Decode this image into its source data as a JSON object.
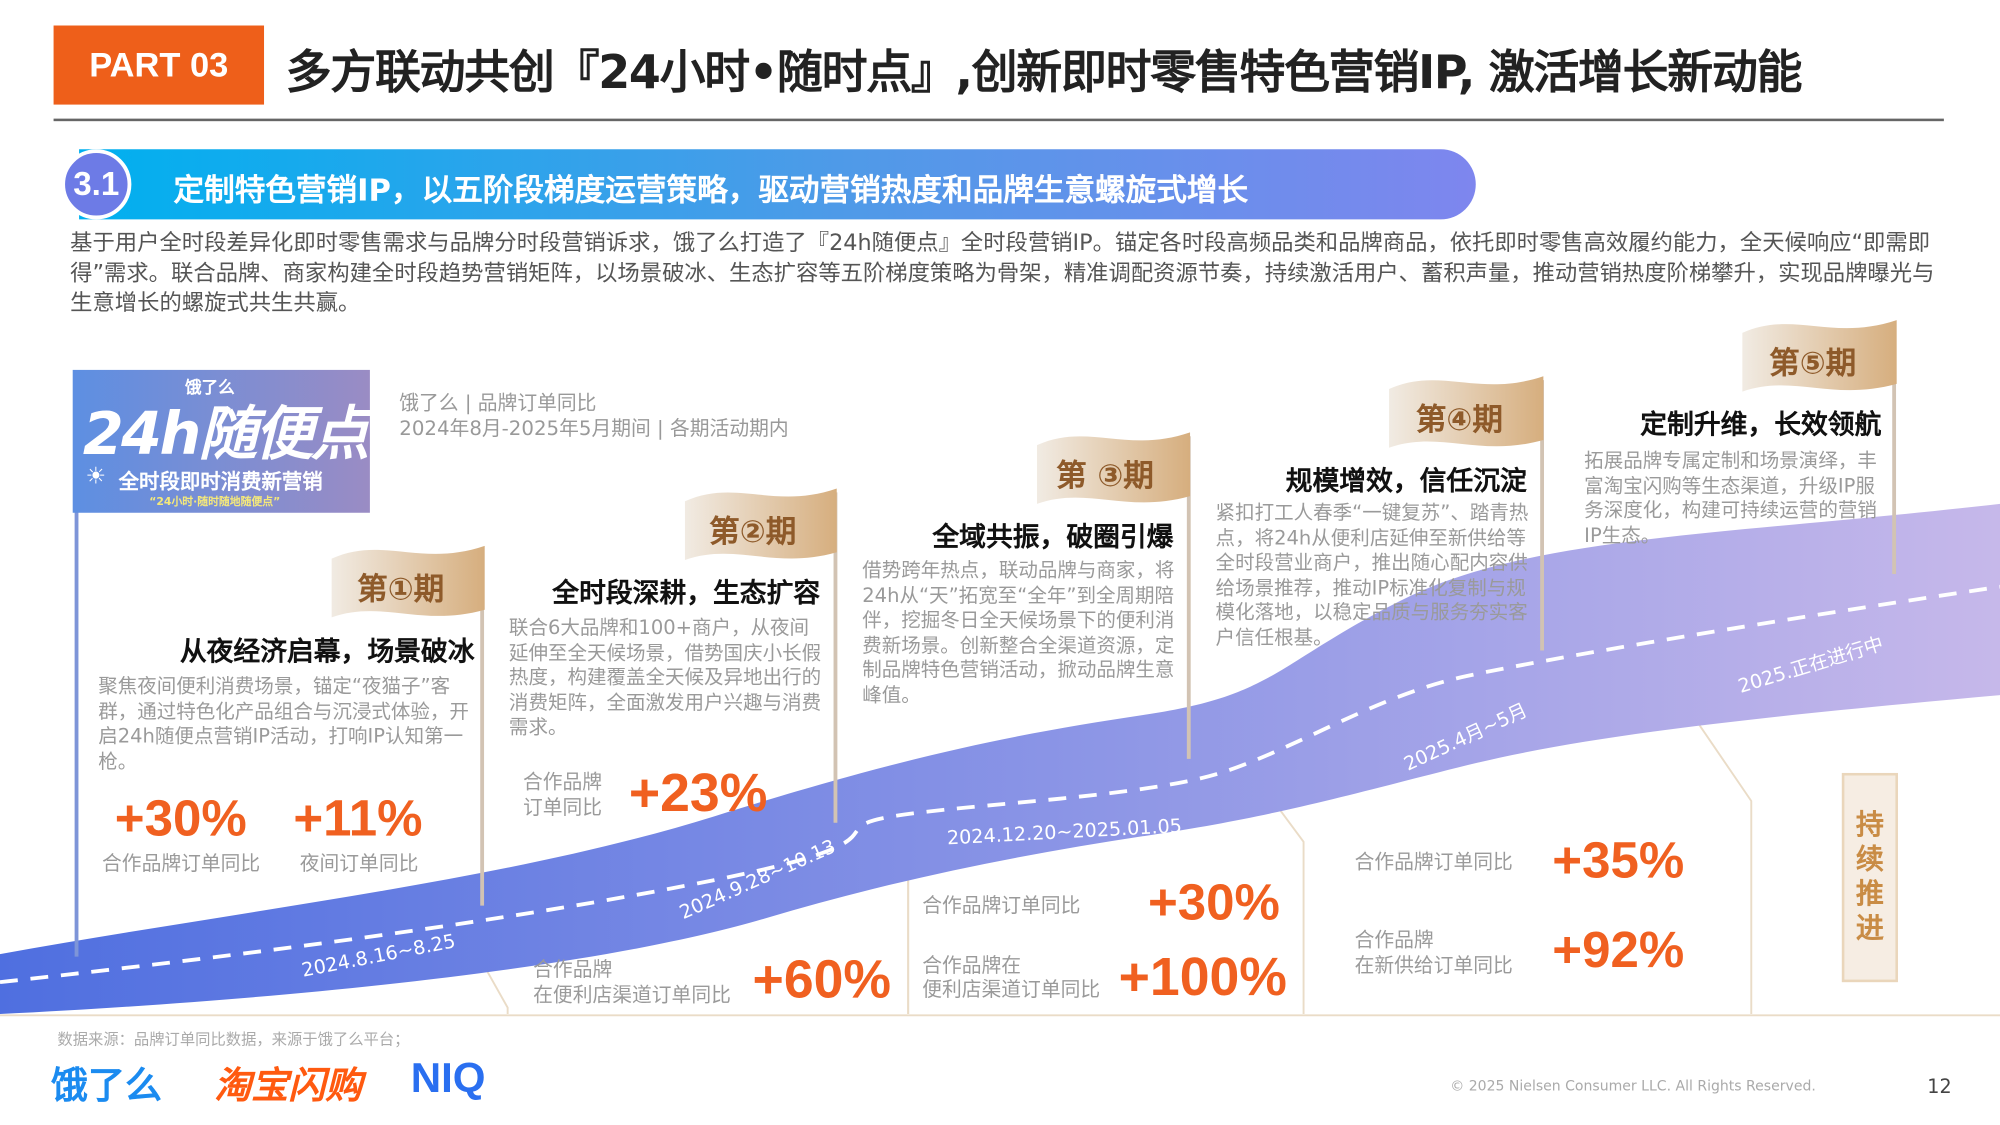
{
  "header": {
    "part_label": "PART 03",
    "title": "多方联动共创『24小时•随时点』,创新即时零售特色营销IP, 激活增长新动能"
  },
  "section": {
    "number": "3.1",
    "title": "定制特色营销IP，以五阶段梯度运营策略，驱动营销热度和品牌生意螺旋式增长"
  },
  "intro": "基于用户全时段差异化即时零售需求与品牌分时段营销诉求，饿了么打造了『24h随便点』全时段营销IP。锚定各时段高频品类和品牌商品，依托即时零售高效履约能力，全天候响应“即需即得”需求。联合品牌、商家构建全时段趋势营销矩阵，以场景破冰、生态扩容等五阶梯度策略为骨架，精准调配资源节奏，持续激活用户、蓄积声量，推动营销热度阶梯攀升，实现品牌曝光与生意增长的螺旋式共生共赢。",
  "logo": {
    "brand": "饿了么",
    "name": "24h随便点",
    "subtitle": "全时段即时消费新营销",
    "slogan": "“24小时·随时随地随便点”"
  },
  "source_note": {
    "line1": "饿了么 | 品牌订单同比",
    "line2": "2024年8月-2025年5月期间 | 各期活动期内"
  },
  "colors": {
    "accent_orange": "#f06020",
    "part_orange": "#ee5f1a",
    "ribbon_start": "#4f6fe0",
    "ribbon_end": "#c6b8ea",
    "flag_brown": "#8e5a2a"
  },
  "phases": [
    {
      "flag": "第①期",
      "heading": "从夜经济启幕，场景破冰",
      "desc": "聚焦夜间便利消费场景，锚定“夜猫子”客群，通过特色化产品组合与沉浸式体验，开启24h随便点营销IP活动，打响IP认知第一枪。",
      "date": "2024.8.16~8.25",
      "stats": [
        {
          "value": "+30%",
          "label": "合作品牌订单同比"
        },
        {
          "value": "+11%",
          "label": "夜间订单同比"
        }
      ]
    },
    {
      "flag": "第②期",
      "heading": "全时段深耕，生态扩容",
      "desc": "联合6大品牌和100+商户，从夜间延伸至全天候场景，借势国庆小长假热度，构建覆盖全天候及异地出行的消费矩阵，全面激发用户兴趣与消费需求。",
      "date": "2024.9.28~10.13",
      "stats": [
        {
          "value": "+23%",
          "label1": "合作品牌",
          "label2": "订单同比"
        },
        {
          "value": "+60%",
          "label1": "合作品牌",
          "label2": "在便利店渠道订单同比"
        }
      ]
    },
    {
      "flag": "第 ③期",
      "heading": "全域共振，破圈引爆",
      "desc": "借势跨年热点，联动品牌与商家，将24h从“天”拓宽至“全年”到全周期陪伴，挖掘冬日全天候场景下的便利消费新场景。创新整合全渠道资源，定制品牌特色营销活动，掀动品牌生意峰值。",
      "date": "2024.12.20~2025.01.05",
      "stats": [
        {
          "value": "+30%",
          "label1": "合作品牌订单同比",
          "label2": ""
        },
        {
          "value": "+100%",
          "label1": "合作品牌在",
          "label2": "便利店渠道订单同比"
        }
      ]
    },
    {
      "flag": "第④期",
      "heading": "规模增效，信任沉淀",
      "desc": "紧扣打工人春季“一键复苏”、踏青热点，将24h从便利店延伸至新供给等全时段营业商户，推出随心配内容供给场景推荐，推动IP标准化复制与规模化落地，以稳定品质与服务夯实客户信任根基。",
      "date": "2025.4月~5月",
      "stats": [
        {
          "value": "+35%",
          "label1": "合作品牌订单同比",
          "label2": ""
        },
        {
          "value": "+92%",
          "label1": "合作品牌",
          "label2": "在新供给订单同比"
        }
      ]
    },
    {
      "flag": "第⑤期",
      "heading": "定制升维，长效领航",
      "desc": "拓展品牌专属定制和场景演绎，丰富淘宝闪购等生态渠道，升级IP服务深度化，构建可持续运营的营销IP生态。",
      "date": "2025.正在进行中"
    }
  ],
  "keep_going": "持续推进",
  "footer": {
    "data_source": "数据来源：品牌订单同比数据，来源于饿了么平台；",
    "logos": [
      "饿了么",
      "淘宝闪购",
      "NIQ"
    ],
    "copyright": "© 2025 Nielsen Consumer LLC. All Rights Reserved.",
    "page_number": "12"
  }
}
